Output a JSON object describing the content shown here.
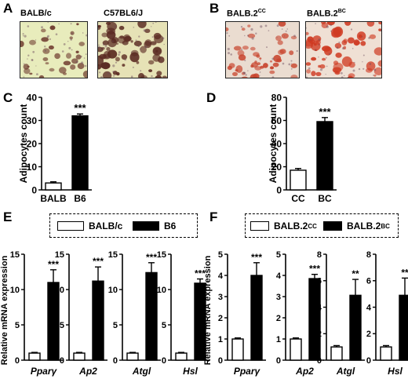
{
  "panels": {
    "A": {
      "letter": "A",
      "images": [
        {
          "label": "BALB/c",
          "tint": "#e8ecbc",
          "cell_color": "#6e3a2e",
          "density": "sparse"
        },
        {
          "label": "C57BL6/J",
          "tint": "#e6e2b6",
          "cell_color": "#5a2a22",
          "density": "dense"
        }
      ]
    },
    "B": {
      "letter": "B",
      "images": [
        {
          "label_base": "BALB.2",
          "label_sup": "CC",
          "tint": "#eadcd0",
          "cell_color": "#c8452e",
          "density": "medium"
        },
        {
          "label_base": "BALB.2",
          "label_sup": "BC",
          "tint": "#efe0d4",
          "cell_color": "#cf3a22",
          "density": "dense"
        }
      ]
    },
    "C": {
      "letter": "C"
    },
    "D": {
      "letter": "D"
    },
    "E": {
      "letter": "E",
      "legend": [
        {
          "label": "BALB/c",
          "fill": "#ffffff"
        },
        {
          "label": "B6",
          "fill": "#000000"
        }
      ]
    },
    "F": {
      "letter": "F",
      "legend": [
        {
          "label_base": "BALB.2",
          "label_sup": "CC",
          "fill": "#ffffff"
        },
        {
          "label_base": "BALB.2",
          "label_sup": "BC",
          "fill": "#000000"
        }
      ]
    }
  },
  "chart_data": [
    {
      "id": "C",
      "type": "bar",
      "ylabel": "Adipocytes count",
      "ylim": [
        0,
        40
      ],
      "yticks": [
        0,
        10,
        20,
        30,
        40
      ],
      "categories": [
        "BALB",
        "B6"
      ],
      "values": [
        3,
        32
      ],
      "errors": [
        0.5,
        0.8
      ],
      "fills": [
        "#ffffff",
        "#000000"
      ],
      "annotations": [
        "",
        "***"
      ]
    },
    {
      "id": "D",
      "type": "bar",
      "ylabel": "Adipocytes count",
      "ylim": [
        0,
        80
      ],
      "yticks": [
        0,
        20,
        40,
        60,
        80
      ],
      "categories": [
        "CC",
        "BC"
      ],
      "values": [
        17,
        59
      ],
      "errors": [
        1.5,
        3.5
      ],
      "fills": [
        "#ffffff",
        "#000000"
      ],
      "annotations": [
        "",
        "***"
      ]
    },
    {
      "id": "E1",
      "type": "bar",
      "ylabel": "Relative mRNA expression",
      "gene": "Pparγ",
      "ylim": [
        0,
        15
      ],
      "yticks": [
        0,
        5,
        10,
        15
      ],
      "values": [
        1,
        11
      ],
      "errors": [
        0.1,
        1.8
      ],
      "fills": [
        "#ffffff",
        "#000000"
      ],
      "annotations": [
        "",
        "***"
      ]
    },
    {
      "id": "E2",
      "type": "bar",
      "ylabel": "",
      "gene": "Ap2",
      "ylim": [
        0,
        15
      ],
      "yticks": [
        0,
        5,
        10,
        15
      ],
      "values": [
        1,
        11.2
      ],
      "errors": [
        0.1,
        2.0
      ],
      "fills": [
        "#ffffff",
        "#000000"
      ],
      "annotations": [
        "",
        "***"
      ]
    },
    {
      "id": "E3",
      "type": "bar",
      "ylabel": "",
      "gene": "Atgl",
      "ylim": [
        0,
        15
      ],
      "yticks": [
        0,
        5,
        10,
        15
      ],
      "values": [
        1,
        12.4
      ],
      "errors": [
        0.1,
        1.4
      ],
      "fills": [
        "#ffffff",
        "#000000"
      ],
      "annotations": [
        "",
        "***"
      ]
    },
    {
      "id": "E4",
      "type": "bar",
      "ylabel": "",
      "gene": "Hsl",
      "ylim": [
        0,
        15
      ],
      "yticks": [
        0,
        5,
        10,
        15
      ],
      "values": [
        1,
        10.9
      ],
      "errors": [
        0.1,
        0.6
      ],
      "fills": [
        "#ffffff",
        "#000000"
      ],
      "annotations": [
        "",
        "***"
      ]
    },
    {
      "id": "F1",
      "type": "bar",
      "ylabel": "Relative mRNA expression",
      "gene": "Pparγ",
      "ylim": [
        0,
        5
      ],
      "yticks": [
        0,
        1,
        2,
        3,
        4,
        5
      ],
      "values": [
        1,
        4
      ],
      "errors": [
        0.05,
        0.6
      ],
      "fills": [
        "#ffffff",
        "#000000"
      ],
      "annotations": [
        "",
        "***"
      ]
    },
    {
      "id": "F2",
      "type": "bar",
      "ylabel": "",
      "gene": "Ap2",
      "ylim": [
        0,
        5
      ],
      "yticks": [
        0,
        1,
        2,
        3,
        4,
        5
      ],
      "values": [
        1,
        3.85
      ],
      "errors": [
        0.05,
        0.2
      ],
      "fills": [
        "#ffffff",
        "#000000"
      ],
      "annotations": [
        "",
        "***"
      ]
    },
    {
      "id": "F3",
      "type": "bar",
      "ylabel": "",
      "gene": "Atgl",
      "ylim": [
        0,
        8
      ],
      "yticks": [
        0,
        2,
        4,
        6,
        8
      ],
      "values": [
        1,
        4.9
      ],
      "errors": [
        0.1,
        1.2
      ],
      "fills": [
        "#ffffff",
        "#000000"
      ],
      "annotations": [
        "",
        "**"
      ]
    },
    {
      "id": "F4",
      "type": "bar",
      "ylabel": "",
      "gene": "Hsl",
      "ylim": [
        0,
        8
      ],
      "yticks": [
        0,
        2,
        4,
        6,
        8
      ],
      "values": [
        1,
        4.9
      ],
      "errors": [
        0.1,
        1.3
      ],
      "fills": [
        "#ffffff",
        "#000000"
      ],
      "annotations": [
        "",
        "**"
      ]
    }
  ]
}
